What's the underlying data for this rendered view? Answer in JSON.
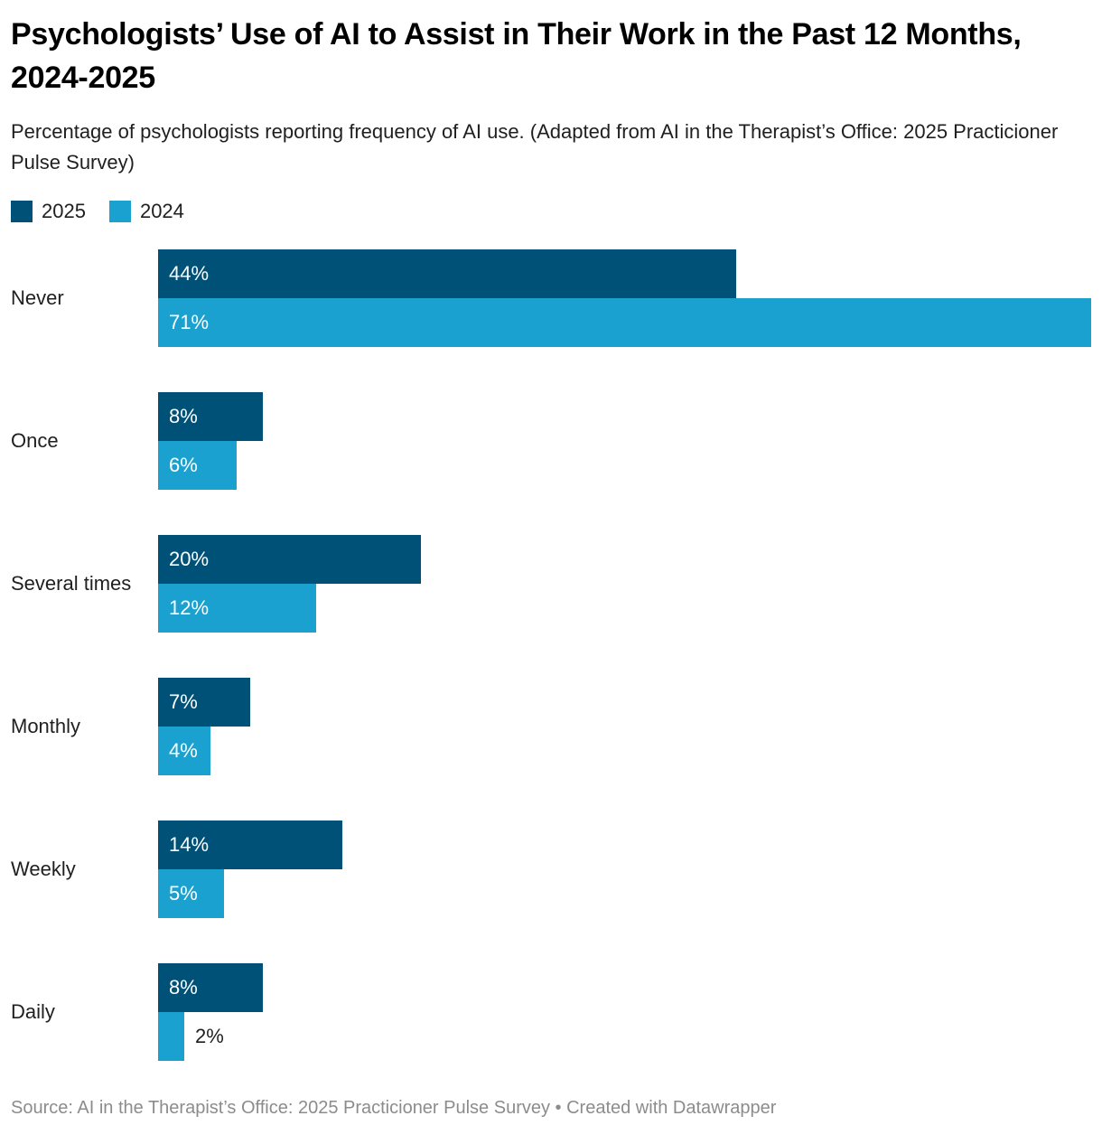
{
  "header": {
    "title": "Psychologists’ Use of AI to Assist in Their Work in the Past 12 Months, 2024-2025",
    "subtitle": "Percentage of psychologists reporting frequency of AI use. (Adapted from AI in the Therapist’s Office: 2025 Practicioner Pulse Survey)"
  },
  "legend": {
    "items": [
      {
        "label": "2025",
        "color": "#005177"
      },
      {
        "label": "2024",
        "color": "#1ba1cf"
      }
    ]
  },
  "chart_data": {
    "type": "bar",
    "orientation": "horizontal",
    "title": "Psychologists’ Use of AI to Assist in Their Work in the Past 12 Months, 2024-2025",
    "subtitle": "Percentage of psychologists reporting frequency of AI use. (Adapted from AI in the Therapist’s Office: 2025 Practicioner Pulse Survey)",
    "categories": [
      "Never",
      "Once",
      "Several times",
      "Monthly",
      "Weekly",
      "Daily"
    ],
    "series": [
      {
        "name": "2025",
        "color": "#005177",
        "values": [
          44,
          8,
          20,
          7,
          14,
          8
        ]
      },
      {
        "name": "2024",
        "color": "#1ba1cf",
        "values": [
          71,
          6,
          12,
          4,
          5,
          2
        ]
      }
    ],
    "value_suffix": "%",
    "xlim": [
      0,
      71
    ],
    "grid": false,
    "legend_position": "top-left",
    "value_labels": "inside bar start, outside in dark text when bar too narrow"
  },
  "footer": {
    "source": "Source: AI in the Therapist’s Office: 2025 Practicioner Pulse Survey • Created with Datawrapper"
  }
}
